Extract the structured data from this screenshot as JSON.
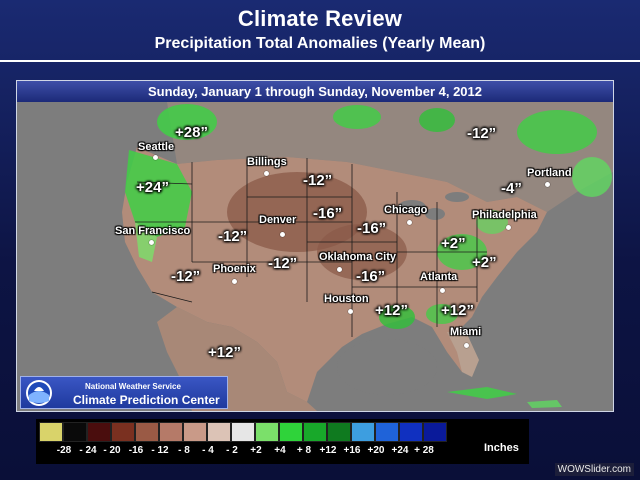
{
  "slide": {
    "title": "Climate Review",
    "subtitle": "Precipitation Total Anomalies (Yearly Mean)"
  },
  "map": {
    "date_range": "Sunday, January 1 through Sunday, November 4, 2012",
    "cities": [
      {
        "name": "Seattle"
      },
      {
        "name": "Billings"
      },
      {
        "name": "Portland"
      },
      {
        "name": "Chicago"
      },
      {
        "name": "Philadelphia"
      },
      {
        "name": "Denver"
      },
      {
        "name": "San Francisco"
      },
      {
        "name": "Oklahoma City"
      },
      {
        "name": "Phoenix"
      },
      {
        "name": "Atlanta"
      },
      {
        "name": "Houston"
      },
      {
        "name": "Miami"
      }
    ],
    "anomaly_labels": [
      {
        "text": "+28”"
      },
      {
        "text": "-12”"
      },
      {
        "text": "+24”"
      },
      {
        "text": "-12”"
      },
      {
        "text": "-4”"
      },
      {
        "text": "-16”"
      },
      {
        "text": "-12”"
      },
      {
        "text": "-16”"
      },
      {
        "text": "+2”"
      },
      {
        "text": "-12”"
      },
      {
        "text": "-12”"
      },
      {
        "text": "-16”"
      },
      {
        "text": "+2”"
      },
      {
        "text": "+12”"
      },
      {
        "text": "+12”"
      },
      {
        "text": "+12”"
      }
    ]
  },
  "agency": {
    "name": "National Weather Service",
    "center": "Climate Prediction Center"
  },
  "legend": {
    "units": "Inches",
    "bins": [
      {
        "label": "-28",
        "color": "#d9d36a"
      },
      {
        "label": "- 24",
        "color": "#0a0a0a"
      },
      {
        "label": "- 20",
        "color": "#4a0d0d"
      },
      {
        "label": "-16",
        "color": "#7a3020"
      },
      {
        "label": "- 12",
        "color": "#9a5a45"
      },
      {
        "label": "- 8",
        "color": "#b57a68"
      },
      {
        "label": "- 4",
        "color": "#c99a88"
      },
      {
        "label": "- 2",
        "color": "#dcc3b6"
      },
      {
        "label": "+2",
        "color": "#e6e6e6"
      },
      {
        "label": "+4",
        "color": "#7be06a"
      },
      {
        "label": "+ 8",
        "color": "#2fd33a"
      },
      {
        "label": "+12",
        "color": "#18a82a"
      },
      {
        "label": "+16",
        "color": "#0f7a1f"
      },
      {
        "label": "+20",
        "color": "#3d9ee0"
      },
      {
        "label": "+24",
        "color": "#1f63d9"
      },
      {
        "label": "+ 28",
        "color": "#1030c0"
      },
      {
        "label": "",
        "color": "#0a1a9a"
      }
    ]
  },
  "watermark": "WOWSlider.com"
}
